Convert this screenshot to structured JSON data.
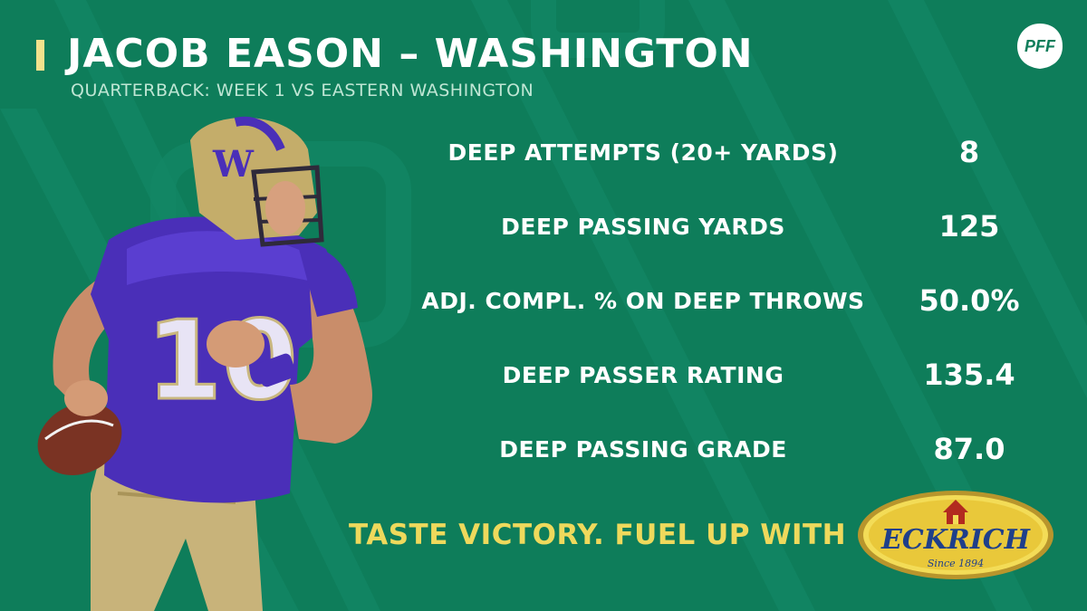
{
  "header": {
    "title": "JACOB EASON – WASHINGTON",
    "subtitle": "QUARTERBACK: WEEK 1 VS EASTERN WASHINGTON"
  },
  "brand": {
    "logo_text": "PFF",
    "background_color": "#0e7d5a",
    "accent_color": "#f2e28c"
  },
  "stats": [
    {
      "label": "DEEP ATTEMPTS (20+ YARDS)",
      "value": "8"
    },
    {
      "label": "DEEP PASSING YARDS",
      "value": "125"
    },
    {
      "label": "ADJ. COMPL. % ON DEEP THROWS",
      "value": "50.0%"
    },
    {
      "label": "DEEP PASSER RATING",
      "value": "135.4"
    },
    {
      "label": "DEEP PASSING GRADE",
      "value": "87.0"
    }
  ],
  "player_jersey": {
    "number": "10",
    "team_letter": "W"
  },
  "sponsor": {
    "tagline": "TASTE VICTORY. FUEL UP WITH",
    "name": "ECKRICH",
    "since": "Since 1894"
  }
}
